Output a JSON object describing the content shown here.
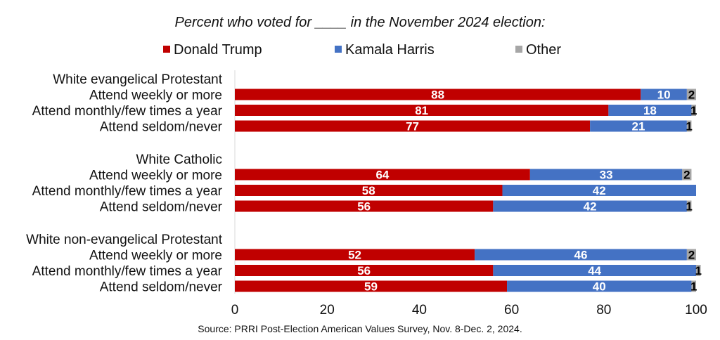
{
  "chart_data": {
    "type": "bar",
    "orientation": "horizontal",
    "stacked": true,
    "title": "Percent who voted for ____ in the November 2024 election:",
    "source": "Source: PRRI Post-Election American Values Survey, Nov. 8-Dec. 2, 2024.",
    "xlim": [
      0,
      100
    ],
    "xticks": [
      "0",
      "20",
      "40",
      "60",
      "80",
      "100"
    ],
    "series": [
      {
        "name": "Donald Trump",
        "color": "#c00000"
      },
      {
        "name": "Kamala Harris",
        "color": "#4472c4"
      },
      {
        "name": "Other",
        "color": "#a6a6a6"
      }
    ],
    "groups": [
      {
        "label": "White evangelical Protestant",
        "rows": [
          {
            "label": "Attend weekly or more",
            "values": [
              88,
              10,
              2
            ],
            "labels": [
              "88",
              "10",
              "2"
            ]
          },
          {
            "label": "Attend monthly/few times a year",
            "values": [
              81,
              18,
              1
            ],
            "labels": [
              "81",
              "18",
              "1"
            ]
          },
          {
            "label": "Attend seldom/never",
            "values": [
              77,
              21,
              1
            ],
            "labels": [
              "77",
              "21",
              "1"
            ]
          }
        ]
      },
      {
        "label": "White Catholic",
        "rows": [
          {
            "label": "Attend weekly or more",
            "values": [
              64,
              33,
              2
            ],
            "labels": [
              "64",
              "33",
              "2"
            ]
          },
          {
            "label": "Attend monthly/few times a year",
            "values": [
              58,
              42,
              0
            ],
            "labels": [
              "58",
              "42",
              ""
            ]
          },
          {
            "label": "Attend seldom/never",
            "values": [
              56,
              42,
              1
            ],
            "labels": [
              "56",
              "42",
              "1"
            ]
          }
        ]
      },
      {
        "label": "White non-evangelical Protestant",
        "rows": [
          {
            "label": "Attend weekly or more",
            "values": [
              52,
              46,
              2
            ],
            "labels": [
              "52",
              "46",
              "2"
            ]
          },
          {
            "label": "Attend monthly/few times a year",
            "values": [
              56,
              44,
              1
            ],
            "labels": [
              "56",
              "44",
              "1"
            ]
          },
          {
            "label": "Attend seldom/never",
            "values": [
              59,
              40,
              1
            ],
            "labels": [
              "59",
              "40",
              "1"
            ]
          }
        ]
      }
    ]
  }
}
